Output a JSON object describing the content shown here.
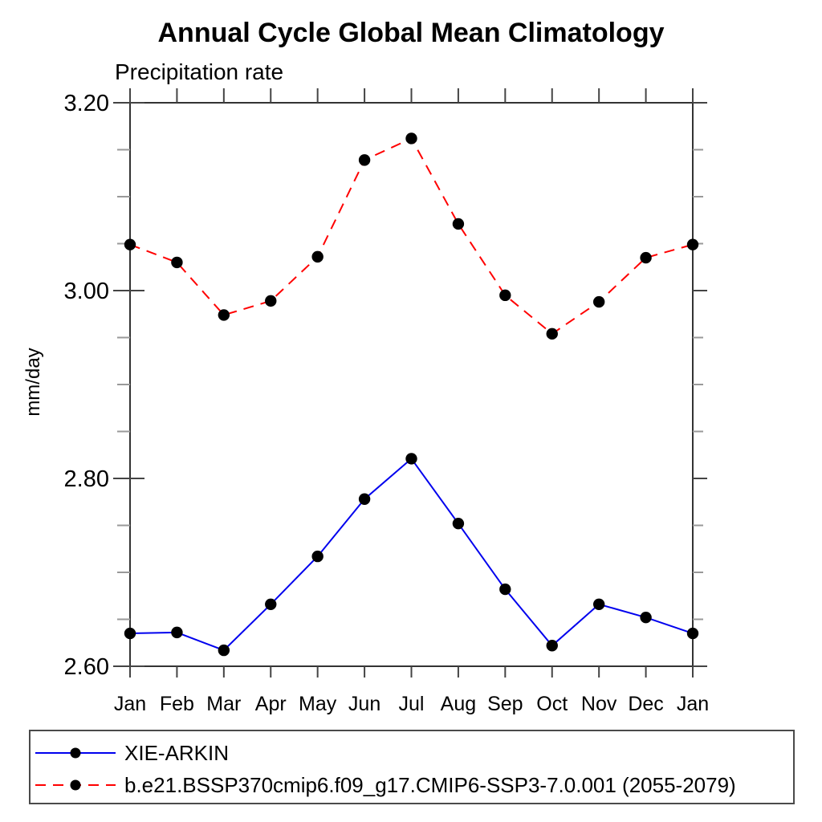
{
  "colors": {
    "background": "#ffffff",
    "frame": "#333333",
    "major_tick": "#444444",
    "minor_tick": "#999999",
    "text": "#000000",
    "marker": "#000000",
    "legend_border": "#4a4a4a",
    "series_blue": "#0000ee",
    "series_red": "#ff0000"
  },
  "chart_data": {
    "type": "line",
    "title": "Annual Cycle Global Mean Climatology",
    "subtitle": "Precipitation rate",
    "ylabel": "mm/day",
    "xlabel": "",
    "categories": [
      "Jan",
      "Feb",
      "Mar",
      "Apr",
      "May",
      "Jun",
      "Jul",
      "Aug",
      "Sep",
      "Oct",
      "Nov",
      "Dec",
      "Jan"
    ],
    "ylim": [
      2.6,
      3.2
    ],
    "ytick_major": [
      3.2,
      3.0,
      2.8,
      2.6
    ],
    "ytick_labels": [
      "3.20",
      "3.00",
      "2.80",
      "2.60"
    ],
    "ytick_minor_step": 0.05,
    "grid": false,
    "legend_position": "bottom",
    "series": [
      {
        "name": "XIE-ARKIN",
        "color": "#0000ee",
        "style": "solid",
        "marker": "circle",
        "marker_color": "#000000",
        "values": [
          2.635,
          2.636,
          2.617,
          2.666,
          2.717,
          2.778,
          2.821,
          2.752,
          2.682,
          2.622,
          2.666,
          2.652,
          2.635
        ]
      },
      {
        "name": "b.e21.BSSP370cmip6.f09_g17.CMIP6-SSP3-7.0.001 (2055-2079)",
        "color": "#ff0000",
        "style": "dashed",
        "marker": "circle",
        "marker_color": "#000000",
        "values": [
          3.049,
          3.03,
          2.974,
          2.989,
          3.036,
          3.139,
          3.162,
          3.071,
          2.995,
          2.954,
          2.988,
          3.035,
          3.049
        ]
      }
    ]
  }
}
